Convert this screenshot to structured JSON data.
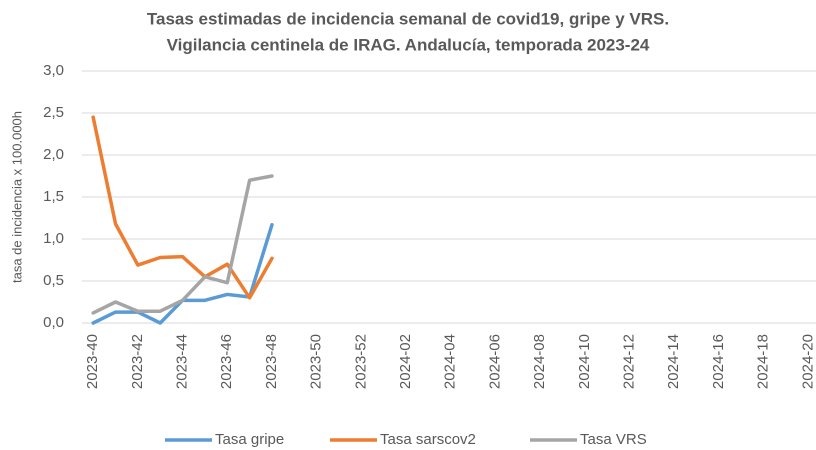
{
  "chart_data": {
    "type": "line",
    "title": "Tasas estimadas de incidencia semanal de covid19, gripe y VRS.",
    "subtitle": "Vigilancia centinela de IRAG. Andalucía, temporada 2023-24",
    "y_label": "tasa de incidencia x 100.000h",
    "categories": [
      "2023-40",
      null,
      "2023-42",
      null,
      "2023-44",
      null,
      "2023-46",
      null,
      "2023-48",
      null,
      "2023-50",
      null,
      "2023-52",
      null,
      "2024-02",
      null,
      "2024-04",
      null,
      "2024-06",
      null,
      "2024-08",
      null,
      "2024-10",
      null,
      "2024-12",
      null,
      "2024-14",
      null,
      "2024-16",
      null,
      "2024-18",
      null,
      "2024-20"
    ],
    "series": [
      {
        "name": "Tasa gripe",
        "color": "#5b9bd5",
        "values": [
          0.0,
          0.13,
          0.13,
          0.0,
          0.27,
          0.27,
          0.34,
          0.31,
          1.17,
          null,
          null,
          null,
          null,
          null,
          null,
          null,
          null,
          null,
          null,
          null,
          null,
          null,
          null,
          null,
          null,
          null,
          null,
          null,
          null,
          null,
          null,
          null,
          null
        ]
      },
      {
        "name": "Tasa sarscov2",
        "color": "#ed7d31",
        "values": [
          2.45,
          1.18,
          0.69,
          0.78,
          0.79,
          0.55,
          0.7,
          0.3,
          0.77,
          null,
          null,
          null,
          null,
          null,
          null,
          null,
          null,
          null,
          null,
          null,
          null,
          null,
          null,
          null,
          null,
          null,
          null,
          null,
          null,
          null,
          null,
          null,
          null
        ]
      },
      {
        "name": "Tasa VRS",
        "color": "#a5a5a5",
        "values": [
          0.12,
          0.25,
          0.14,
          0.14,
          0.27,
          0.55,
          0.48,
          1.7,
          1.75,
          null,
          null,
          null,
          null,
          null,
          null,
          null,
          null,
          null,
          null,
          null,
          null,
          null,
          null,
          null,
          null,
          null,
          null,
          null,
          null,
          null,
          null,
          null,
          null
        ]
      }
    ],
    "ylim": [
      0,
      3
    ],
    "yticks": [
      {
        "value": 0,
        "label": "0,0"
      },
      {
        "value": 0.5,
        "label": "0,5"
      },
      {
        "value": 1,
        "label": "1,0"
      },
      {
        "value": 1.5,
        "label": "1,5"
      },
      {
        "value": 2,
        "label": "2,0"
      },
      {
        "value": 2.5,
        "label": "2,5"
      },
      {
        "value": 3,
        "label": "3,0"
      }
    ],
    "grid": true,
    "legend": "bottom"
  }
}
